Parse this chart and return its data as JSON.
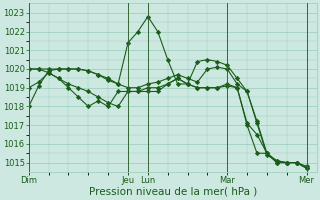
{
  "bg_color": "#cce8e0",
  "grid_color": "#99ccbb",
  "line_color": "#1a5c1a",
  "xlabel": "Pression niveau de la mer( hPa )",
  "ylim": [
    1014.5,
    1023.5
  ],
  "yticks": [
    1015,
    1016,
    1017,
    1018,
    1019,
    1020,
    1021,
    1022,
    1023
  ],
  "day_labels": [
    "Dim",
    "",
    "Jeu",
    "Lun",
    "",
    "Mar",
    "",
    "Mer"
  ],
  "day_tick_labels": [
    "Dim",
    "Jeu",
    "Lun",
    "Mar",
    "Mer"
  ],
  "day_tick_pos": [
    0,
    60,
    72,
    120,
    168
  ],
  "xlim": [
    0,
    174
  ],
  "series": [
    {
      "x": [
        0,
        6,
        12,
        18,
        24,
        30,
        36,
        42,
        48,
        54,
        60,
        66,
        72,
        78,
        84,
        90,
        96,
        102,
        108,
        114,
        120,
        126,
        132,
        138,
        144,
        150,
        156,
        162,
        168
      ],
      "y": [
        1018.0,
        1019.1,
        1019.9,
        1020.0,
        1020.0,
        1020.0,
        1019.9,
        1019.7,
        1019.5,
        1019.2,
        1021.4,
        1022.0,
        1022.8,
        1022.0,
        1020.5,
        1019.2,
        1019.2,
        1020.4,
        1020.5,
        1020.4,
        1020.2,
        1019.5,
        1018.8,
        1017.1,
        1015.4,
        1015.1,
        1015.0,
        1015.0,
        1014.7
      ]
    },
    {
      "x": [
        0,
        6,
        12,
        18,
        24,
        30,
        36,
        42,
        48,
        54,
        60,
        66,
        72,
        78,
        84,
        90,
        96,
        102,
        108,
        114,
        120,
        126,
        132,
        138,
        144,
        150,
        156,
        162,
        168
      ],
      "y": [
        1020.0,
        1020.0,
        1020.0,
        1020.0,
        1020.0,
        1020.0,
        1019.9,
        1019.7,
        1019.4,
        1019.2,
        1019.0,
        1019.0,
        1019.2,
        1019.3,
        1019.5,
        1019.7,
        1019.5,
        1019.3,
        1020.0,
        1020.1,
        1020.0,
        1019.2,
        1018.8,
        1017.2,
        1015.5,
        1015.1,
        1015.0,
        1015.0,
        1014.8
      ]
    },
    {
      "x": [
        0,
        6,
        12,
        18,
        24,
        30,
        36,
        42,
        48,
        54,
        60,
        66,
        72,
        78,
        84,
        90,
        96,
        102,
        108,
        114,
        120,
        126,
        132,
        138,
        144,
        150,
        156,
        162,
        168
      ],
      "y": [
        1020.0,
        1020.0,
        1019.8,
        1019.5,
        1019.2,
        1019.0,
        1018.8,
        1018.5,
        1018.2,
        1018.0,
        1018.8,
        1018.8,
        1019.0,
        1019.0,
        1019.2,
        1019.5,
        1019.2,
        1019.0,
        1019.0,
        1019.0,
        1019.1,
        1019.0,
        1017.1,
        1016.5,
        1015.5,
        1015.0,
        1015.0,
        1015.0,
        1014.7
      ]
    },
    {
      "x": [
        0,
        6,
        12,
        18,
        24,
        30,
        36,
        42,
        48,
        54,
        60,
        66,
        72,
        78,
        84,
        90,
        96,
        102,
        108,
        114,
        120,
        126,
        132,
        138,
        144,
        150,
        156,
        162,
        168
      ],
      "y": [
        1019.0,
        1019.3,
        1019.8,
        1019.5,
        1019.0,
        1018.5,
        1018.0,
        1018.3,
        1018.0,
        1018.8,
        1018.8,
        1018.8,
        1018.8,
        1018.8,
        1019.2,
        1019.5,
        1019.2,
        1019.0,
        1019.0,
        1019.0,
        1019.2,
        1019.0,
        1017.0,
        1015.5,
        1015.5,
        1015.0,
        1015.0,
        1015.0,
        1014.7
      ]
    }
  ],
  "vlines": [
    0,
    60,
    72,
    120,
    168
  ],
  "ylabel_fontsize": 6,
  "xlabel_fontsize": 7.5,
  "tick_fontsize": 6
}
